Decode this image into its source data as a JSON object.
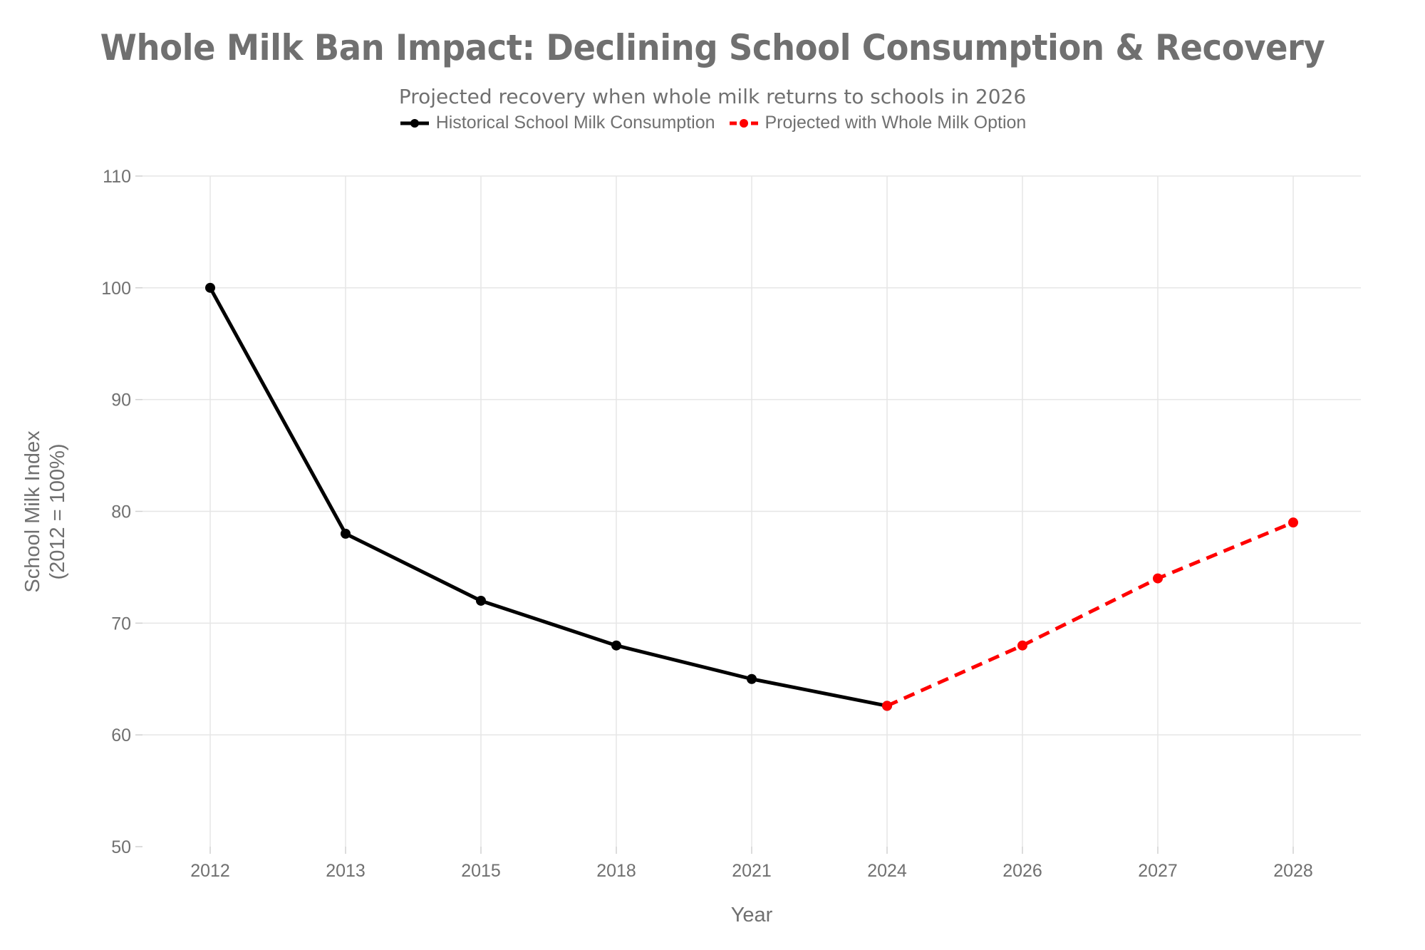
{
  "chart_data": {
    "type": "line",
    "title": "Whole Milk Ban Impact: Declining School Consumption & Recovery",
    "subtitle": "Projected recovery when whole milk returns to schools in 2026",
    "xlabel": "Year",
    "ylabel_lines": [
      "School Milk Index",
      "(2012 = 100%)"
    ],
    "categories": [
      "2012",
      "2013",
      "2015",
      "2018",
      "2021",
      "2024",
      "2026",
      "2027",
      "2028"
    ],
    "ylim": [
      50,
      110
    ],
    "yticks": [
      50,
      60,
      70,
      80,
      90,
      100,
      110
    ],
    "grid": true,
    "legend_position": "top-center",
    "series": [
      {
        "name": "Historical School Milk Consumption",
        "color": "#000000",
        "dash": "solid",
        "x": [
          "2012",
          "2013",
          "2015",
          "2018",
          "2021",
          "2024"
        ],
        "values": [
          100,
          78,
          72,
          68,
          65,
          62.6
        ]
      },
      {
        "name": "Projected with Whole Milk Option",
        "color": "#ff0000",
        "dash": "dashed",
        "x": [
          "2024",
          "2026",
          "2027",
          "2028"
        ],
        "values": [
          62.6,
          68,
          74,
          79
        ]
      }
    ]
  }
}
